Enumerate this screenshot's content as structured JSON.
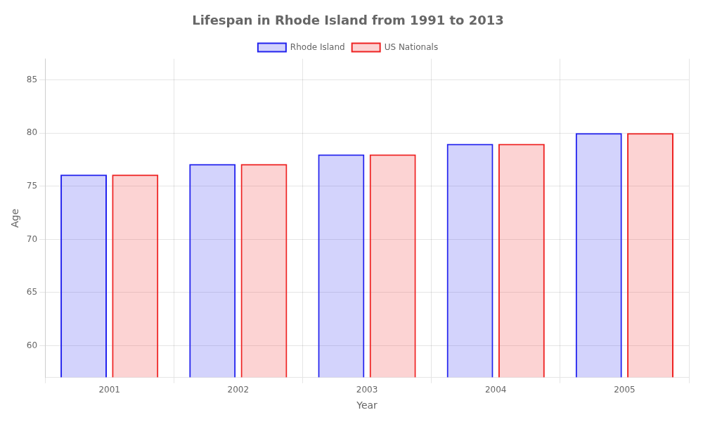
{
  "chart_data": {
    "type": "bar",
    "title": "Lifespan in Rhode Island from 1991 to 2013",
    "xlabel": "Year",
    "ylabel": "Age",
    "categories": [
      "2001",
      "2002",
      "2003",
      "2004",
      "2005"
    ],
    "series": [
      {
        "name": "Rhode Island",
        "color": "#2222ee",
        "values": [
          76.1,
          77.1,
          78.0,
          79.0,
          80.0
        ]
      },
      {
        "name": "US Nationals",
        "color": "#ee2222",
        "values": [
          76.1,
          77.1,
          78.0,
          79.0,
          80.0
        ]
      }
    ],
    "ylim": [
      57,
      87
    ],
    "yticks": [
      60,
      65,
      70,
      75,
      80,
      85
    ],
    "grid": true,
    "legend": "top"
  }
}
